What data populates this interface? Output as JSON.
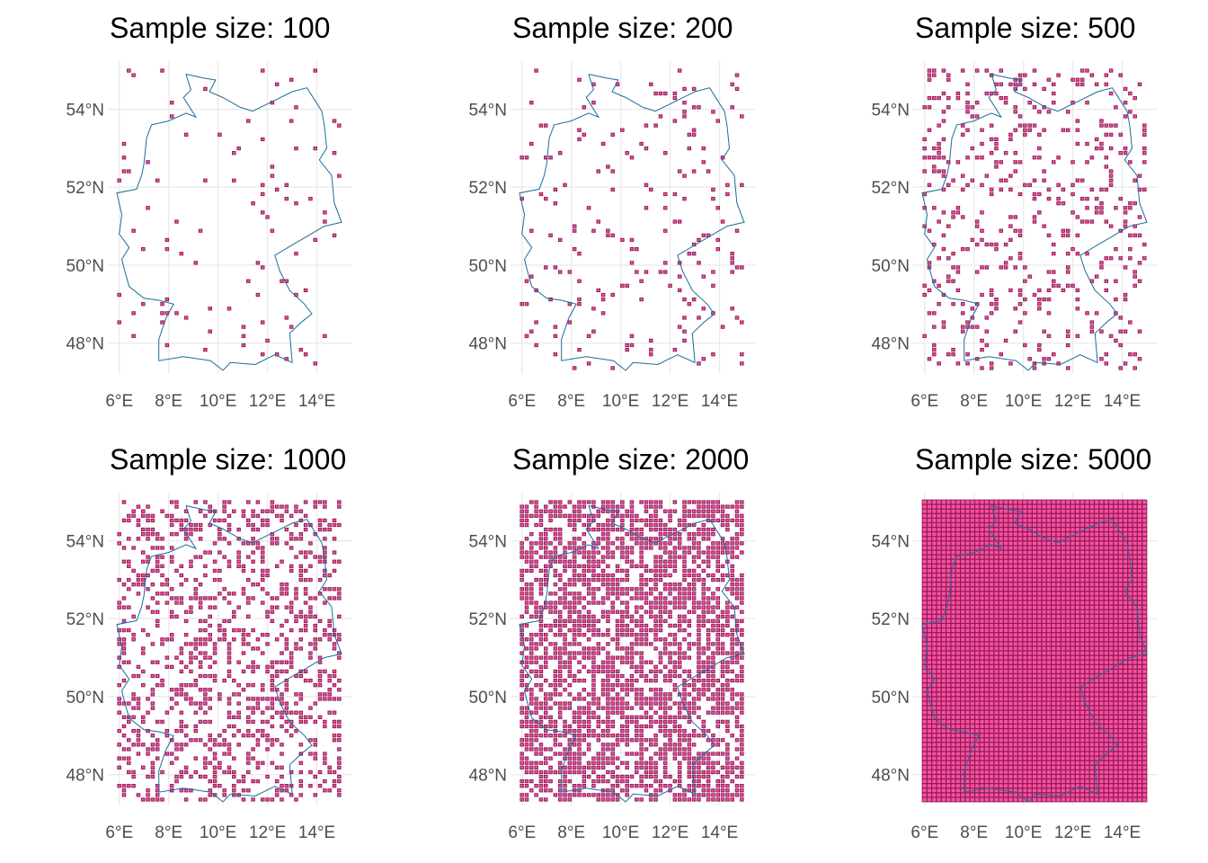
{
  "colors": {
    "cell_fill": "#ff4fa0",
    "cell_stroke": "#8e1f5a",
    "border": "#1b6c9c",
    "grid": "#ebebeb",
    "tick_text": "#4d4d4d",
    "title_text": "#000000"
  },
  "chart_data": {
    "type": "scatter",
    "geom": "sampled grid cells over a map outline (Germany)",
    "grid": true,
    "legend": "none",
    "xlim": [
      5.9,
      15.0
    ],
    "ylim": [
      47.3,
      55.05
    ],
    "x_ticks": [
      6,
      8,
      10,
      12,
      14
    ],
    "x_tick_labels": [
      "6°E",
      "8°E",
      "10°E",
      "12°E",
      "14°E"
    ],
    "y_ticks": [
      48,
      50,
      52,
      54
    ],
    "y_tick_labels": [
      "48°N",
      "50°N",
      "52°N",
      "54°N"
    ],
    "panels": [
      {
        "title": "Sample size: 100",
        "n": 100
      },
      {
        "title": "Sample size: 200",
        "n": 200
      },
      {
        "title": "Sample size: 500",
        "n": 500
      },
      {
        "title": "Sample size: 1000",
        "n": 1000
      },
      {
        "title": "Sample size: 2000",
        "n": 2000
      },
      {
        "title": "Sample size: 5000",
        "n": 5000
      }
    ],
    "border_outline_lonlat": [
      [
        8.7,
        54.9
      ],
      [
        9.4,
        54.8
      ],
      [
        9.9,
        54.75
      ],
      [
        9.65,
        54.45
      ],
      [
        10.2,
        54.3
      ],
      [
        10.9,
        54.05
      ],
      [
        11.4,
        53.95
      ],
      [
        12.2,
        54.2
      ],
      [
        13.0,
        54.45
      ],
      [
        13.6,
        54.55
      ],
      [
        14.2,
        53.95
      ],
      [
        14.3,
        53.6
      ],
      [
        14.4,
        53.0
      ],
      [
        14.1,
        52.7
      ],
      [
        14.6,
        52.3
      ],
      [
        14.7,
        51.6
      ],
      [
        15.0,
        51.1
      ],
      [
        14.3,
        51.0
      ],
      [
        13.5,
        50.7
      ],
      [
        12.95,
        50.5
      ],
      [
        12.3,
        50.25
      ],
      [
        12.5,
        49.85
      ],
      [
        12.9,
        49.35
      ],
      [
        13.5,
        49.0
      ],
      [
        13.8,
        48.75
      ],
      [
        13.4,
        48.55
      ],
      [
        12.9,
        48.25
      ],
      [
        13.0,
        47.5
      ],
      [
        12.3,
        47.7
      ],
      [
        11.5,
        47.45
      ],
      [
        10.5,
        47.5
      ],
      [
        10.2,
        47.3
      ],
      [
        9.7,
        47.55
      ],
      [
        8.6,
        47.65
      ],
      [
        7.6,
        47.55
      ],
      [
        7.6,
        48.1
      ],
      [
        7.9,
        48.65
      ],
      [
        8.2,
        49.0
      ],
      [
        7.6,
        49.1
      ],
      [
        7.0,
        49.15
      ],
      [
        6.4,
        49.45
      ],
      [
        6.2,
        49.9
      ],
      [
        6.1,
        50.15
      ],
      [
        6.4,
        50.45
      ],
      [
        6.0,
        50.8
      ],
      [
        6.1,
        51.3
      ],
      [
        5.9,
        51.85
      ],
      [
        6.7,
        51.95
      ],
      [
        6.9,
        52.3
      ],
      [
        7.0,
        52.6
      ],
      [
        7.1,
        53.25
      ],
      [
        7.3,
        53.6
      ],
      [
        8.0,
        53.7
      ],
      [
        8.7,
        53.9
      ],
      [
        9.1,
        53.8
      ],
      [
        8.6,
        54.3
      ],
      [
        8.9,
        54.5
      ],
      [
        8.7,
        54.9
      ]
    ]
  }
}
